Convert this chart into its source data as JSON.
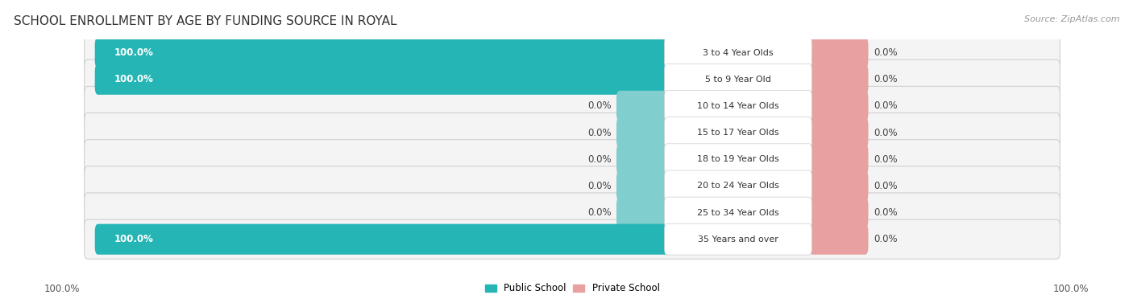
{
  "title": "SCHOOL ENROLLMENT BY AGE BY FUNDING SOURCE IN ROYAL",
  "source": "Source: ZipAtlas.com",
  "categories": [
    "3 to 4 Year Olds",
    "5 to 9 Year Old",
    "10 to 14 Year Olds",
    "15 to 17 Year Olds",
    "18 to 19 Year Olds",
    "20 to 24 Year Olds",
    "25 to 34 Year Olds",
    "35 Years and over"
  ],
  "public_values": [
    100.0,
    100.0,
    0.0,
    0.0,
    0.0,
    0.0,
    0.0,
    100.0
  ],
  "private_values": [
    0.0,
    0.0,
    0.0,
    0.0,
    0.0,
    0.0,
    0.0,
    0.0
  ],
  "public_color": "#26b5b5",
  "public_stub_color": "#80cece",
  "private_color": "#e8a0a0",
  "public_label": "Public School",
  "private_label": "Private School",
  "x_left_label": "100.0%",
  "x_right_label": "100.0%",
  "title_fontsize": 11,
  "label_fontsize": 8.5,
  "cat_fontsize": 8.0,
  "val_fontsize": 8.5
}
